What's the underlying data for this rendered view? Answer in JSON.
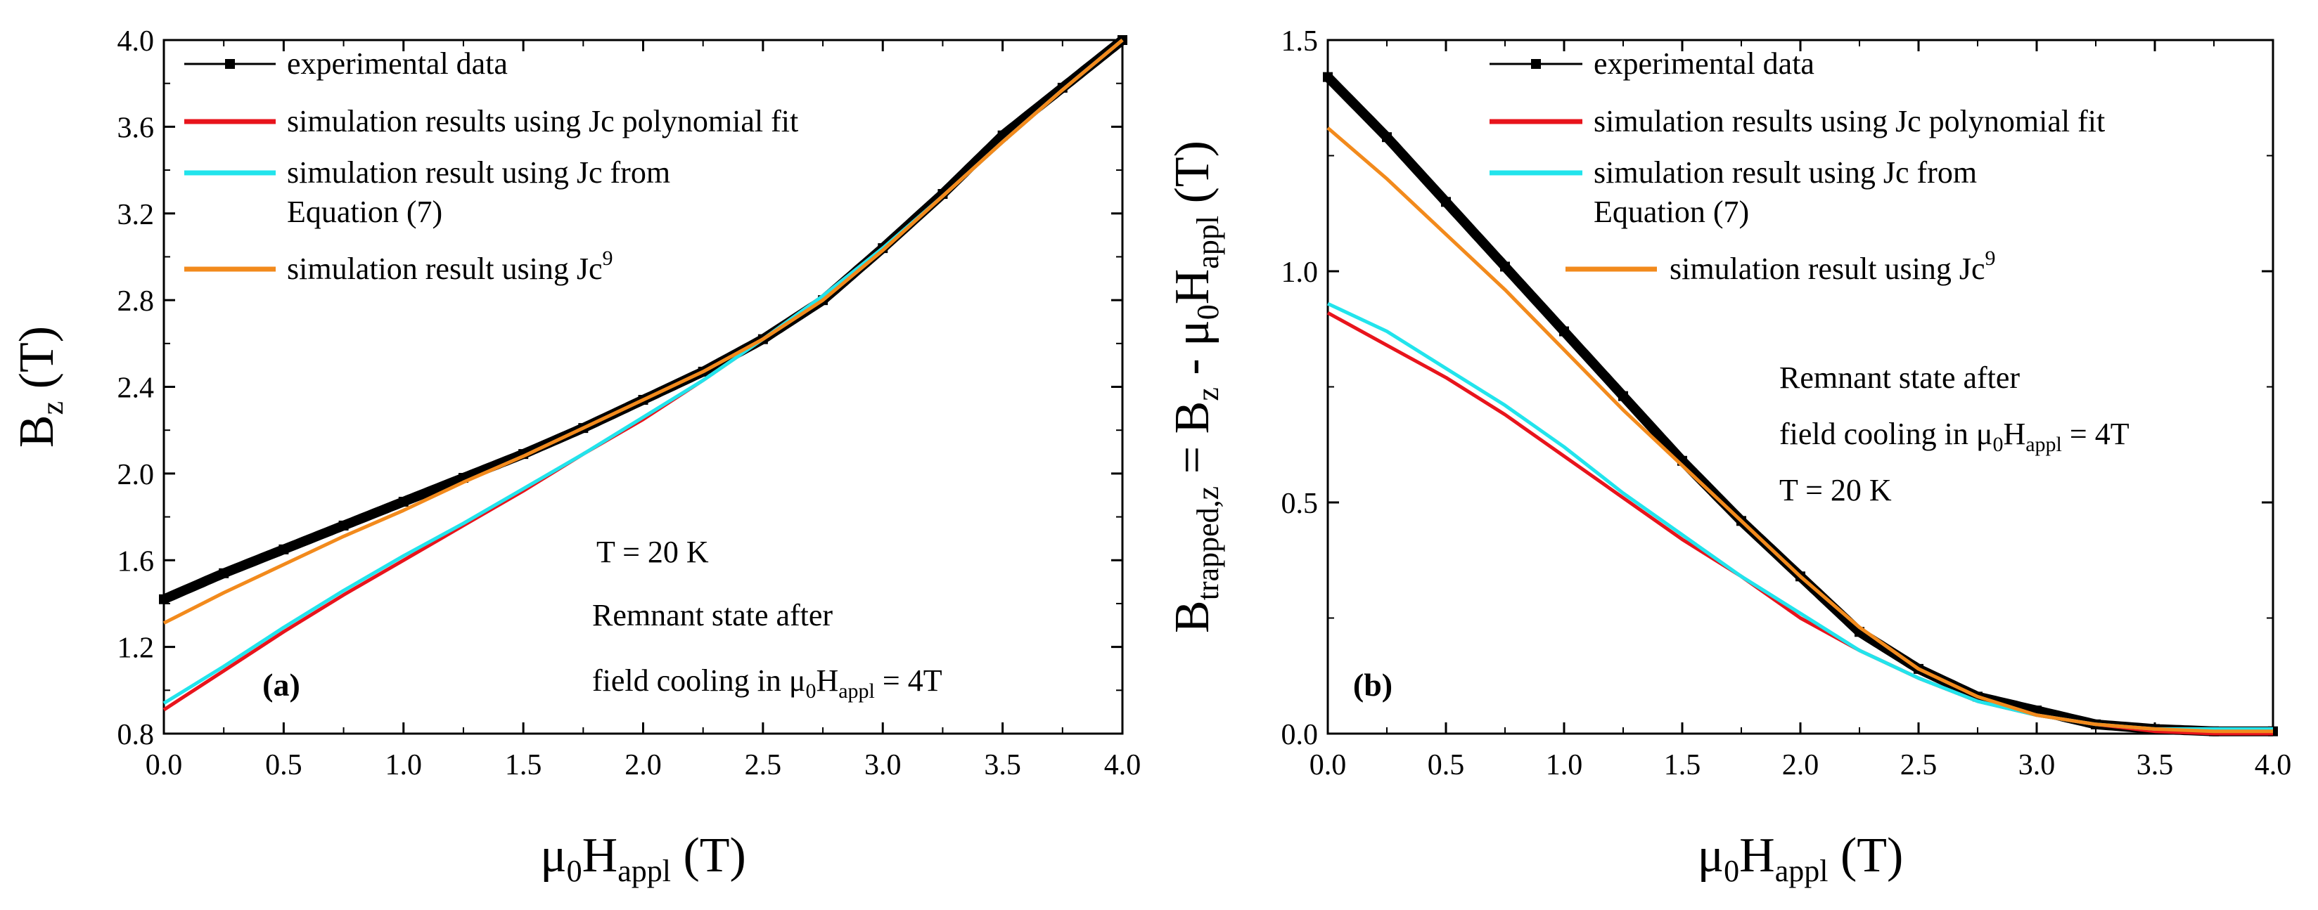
{
  "colors": {
    "experimental": "#000000",
    "polynomial_fit": "#e8141c",
    "equation7": "#22e4ec",
    "ref9": "#f28a1c"
  },
  "chart_data": [
    {
      "panel": "(a)",
      "type": "line",
      "x_label": {
        "prefix": "μ",
        "sub0": "0",
        "main": "H",
        "sub1": "appl",
        "suffix": " (T)"
      },
      "y_label": {
        "main": "B",
        "sub": "z",
        "suffix": " (T)"
      },
      "xlim": [
        0,
        4
      ],
      "ylim": [
        0.8,
        4.0
      ],
      "x_ticks": [
        "0.0",
        "0.5",
        "1.0",
        "1.5",
        "2.0",
        "2.5",
        "3.0",
        "3.5",
        "4.0"
      ],
      "y_ticks": [
        "0.8",
        "1.2",
        "1.6",
        "2.0",
        "2.4",
        "2.8",
        "3.2",
        "3.6",
        "4.0"
      ],
      "legend": [
        {
          "label": "experimental data",
          "series": "experimental"
        },
        {
          "label": "simulation results using Jc polynomial fit",
          "series": "polynomial_fit"
        },
        {
          "label": "simulation result using Jc from",
          "label2": "Equation (7)",
          "series": "equation7"
        },
        {
          "label": "simulation result using Jc",
          "sup": "9",
          "series": "ref9"
        }
      ],
      "annotations": [
        "T = 20 K",
        "Remnant state after",
        "field cooling in μ0Happl = 4T"
      ],
      "series": [
        {
          "name": "experimental",
          "style": "markers",
          "x": [
            0,
            0.25,
            0.5,
            0.75,
            1.0,
            1.25,
            1.5,
            1.75,
            2.0,
            2.25,
            2.5,
            2.75,
            3.0,
            3.25,
            3.5,
            3.75,
            4.0
          ],
          "y": [
            1.42,
            1.54,
            1.65,
            1.76,
            1.87,
            1.98,
            2.09,
            2.21,
            2.34,
            2.47,
            2.62,
            2.8,
            3.04,
            3.29,
            3.56,
            3.78,
            4.0
          ]
        },
        {
          "name": "polynomial_fit",
          "style": "line",
          "x": [
            0,
            0.25,
            0.5,
            0.75,
            1.0,
            1.25,
            1.5,
            1.75,
            2.0,
            2.25,
            2.5,
            2.75,
            3.0,
            3.25,
            3.5,
            3.75,
            4.0
          ],
          "y": [
            0.91,
            1.09,
            1.27,
            1.44,
            1.6,
            1.76,
            1.92,
            2.09,
            2.25,
            2.43,
            2.62,
            2.82,
            3.04,
            3.28,
            3.53,
            3.77,
            4.0
          ]
        },
        {
          "name": "equation7",
          "style": "line",
          "x": [
            0,
            0.25,
            0.5,
            0.75,
            1.0,
            1.25,
            1.5,
            1.75,
            2.0,
            2.25,
            2.5,
            2.75,
            3.0,
            3.25,
            3.5,
            3.75,
            4.0
          ],
          "y": [
            0.94,
            1.11,
            1.29,
            1.46,
            1.62,
            1.77,
            1.93,
            2.09,
            2.26,
            2.43,
            2.62,
            2.82,
            3.04,
            3.28,
            3.53,
            3.77,
            4.0
          ]
        },
        {
          "name": "ref9",
          "style": "line",
          "x": [
            0,
            0.25,
            0.5,
            0.75,
            1.0,
            1.25,
            1.5,
            1.75,
            2.0,
            2.25,
            2.5,
            2.75,
            3.0,
            3.25,
            3.5,
            3.75,
            4.0
          ],
          "y": [
            1.31,
            1.45,
            1.58,
            1.71,
            1.83,
            1.96,
            2.08,
            2.21,
            2.34,
            2.47,
            2.62,
            2.8,
            3.03,
            3.28,
            3.53,
            3.77,
            4.0
          ]
        }
      ]
    },
    {
      "panel": "(b)",
      "type": "line",
      "x_label": {
        "prefix": "μ",
        "sub0": "0",
        "main": "H",
        "sub1": "appl",
        "suffix": " (T)"
      },
      "y_label": {
        "main": "B",
        "sub": "trapped,z",
        "mid": " = B",
        "sub2": "z",
        "mid2": " - μ",
        "sub3": "0",
        "main2": "H",
        "sub4": "appl",
        "suffix": " (T)"
      },
      "xlim": [
        0,
        4
      ],
      "ylim": [
        0.0,
        1.5
      ],
      "x_ticks": [
        "0.0",
        "0.5",
        "1.0",
        "1.5",
        "2.0",
        "2.5",
        "3.0",
        "3.5",
        "4.0"
      ],
      "y_ticks": [
        "0.0",
        "0.5",
        "1.0",
        "1.5"
      ],
      "legend": [
        {
          "label": "experimental data",
          "series": "experimental"
        },
        {
          "label": "simulation results using Jc polynomial fit",
          "series": "polynomial_fit"
        },
        {
          "label": "simulation result using Jc from",
          "label2": "Equation (7)",
          "series": "equation7"
        },
        {
          "label": "simulation result using Jc",
          "sup": "9",
          "series": "ref9"
        }
      ],
      "annotations": [
        "Remnant state after",
        "field cooling in μ0Happl = 4T",
        "T = 20 K"
      ],
      "series": [
        {
          "name": "experimental",
          "style": "markers",
          "x": [
            0,
            0.25,
            0.5,
            0.75,
            1.0,
            1.25,
            1.5,
            1.75,
            2.0,
            2.25,
            2.5,
            2.75,
            3.0,
            3.25,
            3.5,
            3.75,
            4.0
          ],
          "y": [
            1.42,
            1.29,
            1.15,
            1.01,
            0.87,
            0.73,
            0.59,
            0.46,
            0.34,
            0.22,
            0.14,
            0.08,
            0.05,
            0.02,
            0.01,
            0.005,
            0.005
          ]
        },
        {
          "name": "polynomial_fit",
          "style": "line",
          "x": [
            0,
            0.25,
            0.5,
            0.75,
            1.0,
            1.25,
            1.5,
            1.75,
            2.0,
            2.25,
            2.5,
            2.75,
            3.0,
            3.25,
            3.5,
            3.75,
            4.0
          ],
          "y": [
            0.91,
            0.84,
            0.77,
            0.69,
            0.6,
            0.51,
            0.42,
            0.34,
            0.25,
            0.18,
            0.12,
            0.07,
            0.04,
            0.02,
            0.005,
            0.0,
            0.0
          ]
        },
        {
          "name": "equation7",
          "style": "line",
          "x": [
            0,
            0.25,
            0.5,
            0.75,
            1.0,
            1.25,
            1.5,
            1.75,
            2.0,
            2.25,
            2.5,
            2.75,
            3.0,
            3.25,
            3.5,
            3.75,
            4.0
          ],
          "y": [
            0.93,
            0.87,
            0.79,
            0.71,
            0.62,
            0.52,
            0.43,
            0.34,
            0.26,
            0.18,
            0.12,
            0.07,
            0.04,
            0.02,
            0.01,
            0.01,
            0.01
          ]
        },
        {
          "name": "ref9",
          "style": "line",
          "x": [
            0,
            0.25,
            0.5,
            0.75,
            1.0,
            1.25,
            1.5,
            1.75,
            2.0,
            2.25,
            2.5,
            2.75,
            3.0,
            3.25,
            3.5,
            3.75,
            4.0
          ],
          "y": [
            1.31,
            1.2,
            1.08,
            0.96,
            0.83,
            0.7,
            0.58,
            0.46,
            0.34,
            0.23,
            0.14,
            0.08,
            0.04,
            0.02,
            0.01,
            0.005,
            0.005
          ]
        }
      ]
    }
  ]
}
